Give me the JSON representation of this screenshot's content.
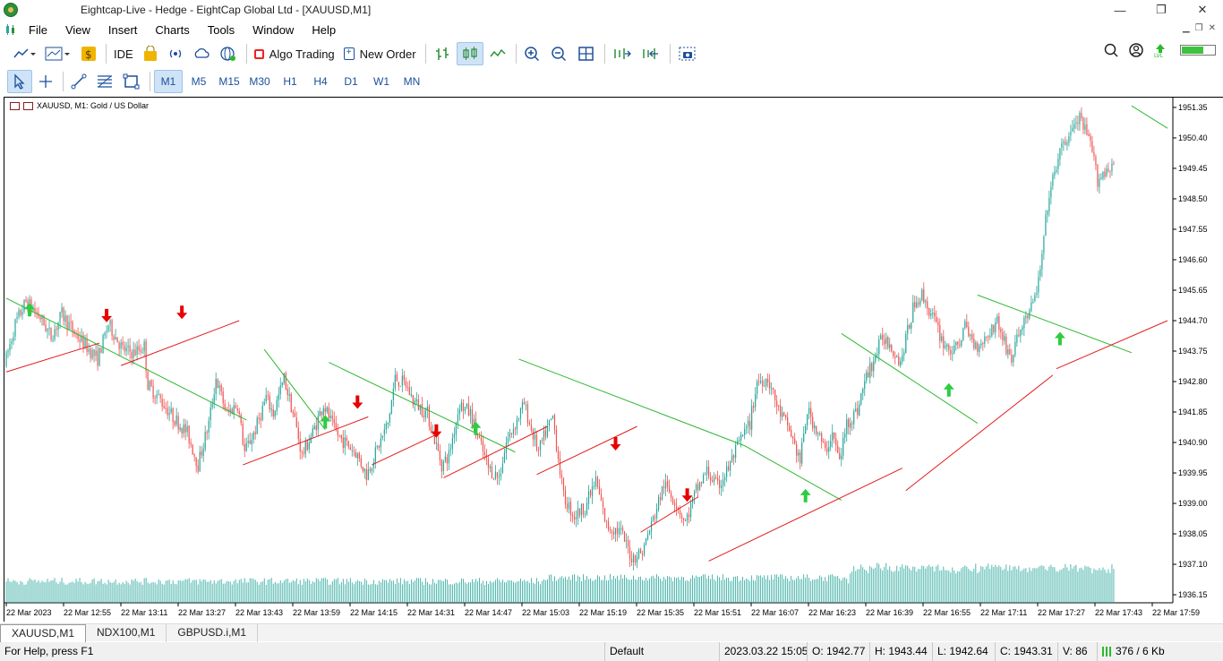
{
  "window": {
    "title": "Eightcap-Live - Hedge - EightCap Global Ltd - [XAUUSD,M1]",
    "controls": {
      "minimize": "—",
      "maximize": "❐",
      "close": "✕"
    }
  },
  "menu": [
    "File",
    "View",
    "Insert",
    "Charts",
    "Tools",
    "Window",
    "Help"
  ],
  "toolbar": {
    "ide_label": "IDE",
    "algo_label": "Algo Trading",
    "new_order_label": "New Order"
  },
  "timeframes": [
    "M1",
    "M5",
    "M15",
    "M30",
    "H1",
    "H4",
    "D1",
    "W1",
    "MN"
  ],
  "active_timeframe": "M1",
  "chart": {
    "header": "XAUUSD, M1:  Gold / US Dollar",
    "colors": {
      "up": "#26a69a",
      "down": "#ef5350",
      "resistance": "#2eb82e",
      "support": "#e31c1c",
      "arrow_up": "#2ecc40",
      "arrow_down": "#e80000",
      "volume": "#26a69a"
    }
  },
  "chart_data": {
    "type": "candlestick",
    "symbol": "XAUUSD",
    "timeframe": "M1",
    "description": "Gold / US Dollar",
    "y_ticks": [
      1951.35,
      1950.4,
      1949.45,
      1948.5,
      1947.55,
      1946.6,
      1945.65,
      1944.7,
      1943.75,
      1942.8,
      1941.85,
      1940.9,
      1939.95,
      1939.0,
      1938.05,
      1937.1,
      1936.15
    ],
    "y_tick_labels": [
      "1951.35",
      "1950.40",
      "1949.45",
      "1948.50",
      "1947.55",
      "1946.60",
      "1945.65",
      "1944.70",
      "1943.75",
      "1942.80",
      "1941.85",
      "1940.90",
      "1939.95",
      "1939.00",
      "1938.05",
      "1937.10",
      "1936.15"
    ],
    "ylim": [
      1935.9,
      1951.6
    ],
    "x_tick_labels": [
      "22 Mar 2023",
      "22 Mar 12:55",
      "22 Mar 13:11",
      "22 Mar 13:27",
      "22 Mar 13:43",
      "22 Mar 13:59",
      "22 Mar 14:15",
      "22 Mar 14:31",
      "22 Mar 14:47",
      "22 Mar 15:03",
      "22 Mar 15:19",
      "22 Mar 15:35",
      "22 Mar 15:51",
      "22 Mar 16:07",
      "22 Mar 16:23",
      "22 Mar 16:39",
      "22 Mar 16:55",
      "22 Mar 17:11",
      "22 Mar 17:27",
      "22 Mar 17:43",
      "22 Mar 17:59"
    ],
    "price_path": [
      [
        0,
        1943.3
      ],
      [
        6,
        1944.6
      ],
      [
        12,
        1945.3
      ],
      [
        20,
        1944.8
      ],
      [
        26,
        1944.2
      ],
      [
        32,
        1944.9
      ],
      [
        38,
        1944.4
      ],
      [
        44,
        1944.0
      ],
      [
        52,
        1943.5
      ],
      [
        58,
        1944.6
      ],
      [
        66,
        1943.8
      ],
      [
        72,
        1943.7
      ],
      [
        78,
        1943.9
      ],
      [
        80,
        1942.7
      ],
      [
        86,
        1942.3
      ],
      [
        94,
        1941.7
      ],
      [
        102,
        1941.2
      ],
      [
        108,
        1940.2
      ],
      [
        114,
        1941.5
      ],
      [
        118,
        1942.9
      ],
      [
        124,
        1941.8
      ],
      [
        130,
        1942.1
      ],
      [
        134,
        1940.6
      ],
      [
        140,
        1941.3
      ],
      [
        146,
        1942.3
      ],
      [
        150,
        1941.8
      ],
      [
        156,
        1942.9
      ],
      [
        162,
        1941.6
      ],
      [
        166,
        1940.5
      ],
      [
        172,
        1941.2
      ],
      [
        178,
        1942.1
      ],
      [
        184,
        1941.3
      ],
      [
        188,
        1941.0
      ],
      [
        196,
        1940.6
      ],
      [
        202,
        1939.9
      ],
      [
        208,
        1940.7
      ],
      [
        214,
        1941.5
      ],
      [
        218,
        1942.9
      ],
      [
        224,
        1942.7
      ],
      [
        228,
        1942.2
      ],
      [
        236,
        1941.8
      ],
      [
        244,
        1940.2
      ],
      [
        248,
        1940.5
      ],
      [
        254,
        1942.1
      ],
      [
        260,
        1941.8
      ],
      [
        264,
        1941.1
      ],
      [
        270,
        1940.1
      ],
      [
        276,
        1939.8
      ],
      [
        280,
        1940.9
      ],
      [
        286,
        1941.6
      ],
      [
        290,
        1942.1
      ],
      [
        294,
        1941.3
      ],
      [
        298,
        1940.6
      ],
      [
        302,
        1941.2
      ],
      [
        306,
        1941.7
      ],
      [
        312,
        1939.2
      ],
      [
        318,
        1938.6
      ],
      [
        324,
        1938.9
      ],
      [
        330,
        1939.7
      ],
      [
        336,
        1938.3
      ],
      [
        344,
        1938.1
      ],
      [
        350,
        1937.3
      ],
      [
        356,
        1937.5
      ],
      [
        362,
        1938.5
      ],
      [
        368,
        1939.6
      ],
      [
        374,
        1939.1
      ],
      [
        380,
        1938.4
      ],
      [
        386,
        1939.4
      ],
      [
        392,
        1940.0
      ],
      [
        398,
        1939.5
      ],
      [
        404,
        1940.1
      ],
      [
        410,
        1940.9
      ],
      [
        416,
        1941.5
      ],
      [
        420,
        1942.8
      ],
      [
        426,
        1942.9
      ],
      [
        432,
        1941.9
      ],
      [
        438,
        1941.3
      ],
      [
        444,
        1940.3
      ],
      [
        448,
        1941.9
      ],
      [
        454,
        1941.2
      ],
      [
        458,
        1940.6
      ],
      [
        462,
        1941.2
      ],
      [
        466,
        1940.3
      ],
      [
        470,
        1941.5
      ],
      [
        476,
        1941.9
      ],
      [
        480,
        1942.8
      ],
      [
        486,
        1943.6
      ],
      [
        490,
        1944.2
      ],
      [
        494,
        1944.0
      ],
      [
        500,
        1943.4
      ],
      [
        508,
        1945.3
      ],
      [
        512,
        1945.5
      ],
      [
        518,
        1944.8
      ],
      [
        524,
        1944.0
      ],
      [
        530,
        1943.7
      ],
      [
        536,
        1944.5
      ],
      [
        542,
        1943.9
      ],
      [
        548,
        1944.2
      ],
      [
        554,
        1944.7
      ],
      [
        558,
        1944.0
      ],
      [
        562,
        1943.5
      ],
      [
        566,
        1944.3
      ],
      [
        570,
        1944.8
      ],
      [
        574,
        1945.2
      ],
      [
        578,
        1946.2
      ],
      [
        582,
        1948.3
      ],
      [
        588,
        1949.8
      ],
      [
        594,
        1950.5
      ],
      [
        600,
        1951.0
      ],
      [
        606,
        1950.2
      ],
      [
        610,
        1949.1
      ],
      [
        618,
        1949.6
      ]
    ],
    "resistance_lines": [
      [
        [
          0,
          1945.4
        ],
        [
          134,
          1941.6
        ]
      ],
      [
        [
          144,
          1943.8
        ],
        [
          178,
          1941.3
        ]
      ],
      [
        [
          180,
          1943.4
        ],
        [
          284,
          1940.6
        ]
      ],
      [
        [
          286,
          1943.5
        ],
        [
          412,
          1940.8
        ]
      ],
      [
        [
          412,
          1940.8
        ],
        [
          466,
          1939.1
        ]
      ],
      [
        [
          466,
          1944.3
        ],
        [
          542,
          1941.5
        ]
      ],
      [
        [
          542,
          1945.5
        ],
        [
          628,
          1943.7
        ]
      ],
      [
        [
          628,
          1951.4
        ],
        [
          648,
          1950.7
        ]
      ]
    ],
    "support_lines": [
      [
        [
          0,
          1943.1
        ],
        [
          52,
          1944.0
        ]
      ],
      [
        [
          64,
          1943.3
        ],
        [
          130,
          1944.7
        ]
      ],
      [
        [
          132,
          1940.2
        ],
        [
          202,
          1941.7
        ]
      ],
      [
        [
          204,
          1940.2
        ],
        [
          242,
          1941.2
        ]
      ],
      [
        [
          244,
          1939.8
        ],
        [
          302,
          1941.4
        ]
      ],
      [
        [
          296,
          1939.9
        ],
        [
          352,
          1941.4
        ]
      ],
      [
        [
          354,
          1938.1
        ],
        [
          386,
          1939.2
        ]
      ],
      [
        [
          392,
          1937.2
        ],
        [
          500,
          1940.1
        ]
      ],
      [
        [
          502,
          1939.4
        ],
        [
          584,
          1943.0
        ]
      ],
      [
        [
          586,
          1943.2
        ],
        [
          648,
          1944.7
        ]
      ]
    ],
    "buy_signals": [
      [
        13,
        1945.0
      ],
      [
        178,
        1941.5
      ],
      [
        262,
        1941.3
      ],
      [
        446,
        1939.2
      ],
      [
        526,
        1942.5
      ],
      [
        588,
        1944.1
      ]
    ],
    "sell_signals": [
      [
        56,
        1944.9
      ],
      [
        98,
        1945.0
      ],
      [
        196,
        1942.2
      ],
      [
        240,
        1941.3
      ],
      [
        340,
        1940.9
      ],
      [
        380,
        1939.3
      ]
    ]
  },
  "tabs": [
    "XAUUSD,M1",
    "NDX100,M1",
    "GBPUSD.i,M1"
  ],
  "status": {
    "help": "For Help, press F1",
    "profile": "Default",
    "datetime": "2023.03.22 15:05",
    "open": "O: 1942.77",
    "high": "H: 1943.44",
    "low": "L: 1942.64",
    "close": "C: 1943.31",
    "volume": "V: 86",
    "traffic": "376 / 6 Kb"
  }
}
